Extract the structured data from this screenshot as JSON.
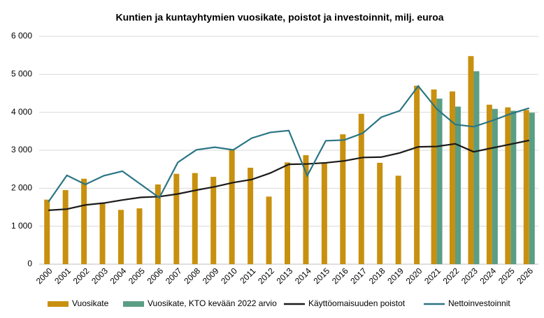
{
  "chart_data": {
    "type": "bar_line",
    "title": "Kuntien ja kuntayhtymien vuosikate, poistot ja investoinnit, milj. euroa",
    "categories": [
      "2000",
      "2001",
      "2002",
      "2003",
      "2004",
      "2005",
      "2006",
      "2007",
      "2008",
      "2009",
      "2010",
      "2011",
      "2012",
      "2013",
      "2014",
      "2015",
      "2016",
      "2017",
      "2018",
      "2019",
      "2020",
      "2021",
      "2022",
      "2023",
      "2024",
      "2025",
      "2026"
    ],
    "series": [
      {
        "name": "Vuosikate",
        "type": "bar",
        "color": "#c8900f",
        "values": [
          1700,
          1950,
          2250,
          1600,
          1430,
          1470,
          2100,
          2380,
          2400,
          2300,
          3020,
          2540,
          1780,
          2680,
          2870,
          2680,
          3420,
          3960,
          2670,
          2330,
          4700,
          4600,
          4550,
          5480,
          4200,
          4130,
          4060
        ]
      },
      {
        "name": "Vuosikate, KTO kevään 2022 arvio",
        "type": "bar",
        "color": "#5a9e84",
        "values": [
          null,
          null,
          null,
          null,
          null,
          null,
          null,
          null,
          null,
          null,
          null,
          null,
          null,
          null,
          null,
          null,
          null,
          null,
          null,
          null,
          null,
          4360,
          4150,
          5080,
          4090,
          4040,
          3990
        ]
      },
      {
        "name": "Käyttöomaisuuden poistot",
        "type": "line",
        "color": "#1a1a1a",
        "values": [
          1420,
          1450,
          1560,
          1610,
          1690,
          1760,
          1780,
          1850,
          1950,
          2040,
          2150,
          2230,
          2400,
          2630,
          2640,
          2670,
          2720,
          2810,
          2820,
          2930,
          3090,
          3100,
          3170,
          2960,
          3060,
          3160,
          3260
        ]
      },
      {
        "name": "Nettoinvestoinnit",
        "type": "line",
        "color": "#2a7585",
        "values": [
          1640,
          2340,
          2100,
          2330,
          2450,
          2100,
          1750,
          2680,
          3010,
          3080,
          3010,
          3320,
          3470,
          3520,
          2330,
          3250,
          3270,
          3450,
          3870,
          4040,
          4690,
          4090,
          3680,
          3620,
          3780,
          3960,
          4110
        ]
      }
    ],
    "ylim": [
      0,
      6000
    ],
    "yticks": [
      0,
      {
        "value": 1000,
        "label": "1 000"
      },
      {
        "value": 2000,
        "label": "2 000"
      },
      {
        "value": 3000,
        "label": "3 000"
      },
      {
        "value": 4000,
        "label": "4 000"
      },
      {
        "value": 5000,
        "label": "5 000"
      },
      {
        "value": 6000,
        "label": "6 000"
      }
    ],
    "grid": true,
    "legend": "bottom"
  }
}
